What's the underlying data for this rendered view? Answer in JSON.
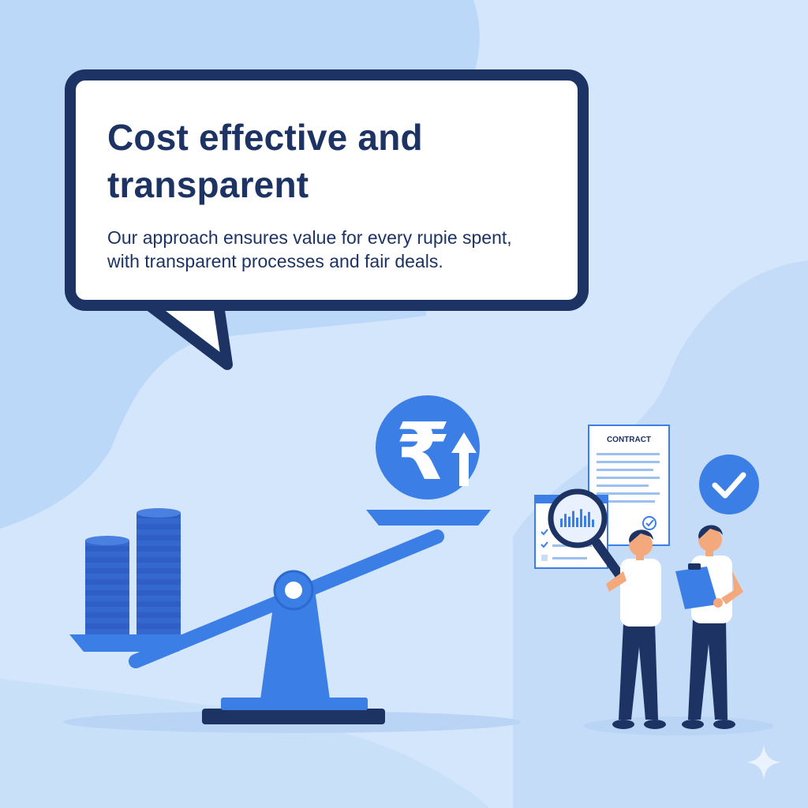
{
  "bubble": {
    "headline": "Cost effective and transparent",
    "body": "Our approach ensures value for every rupie spent, with transparent processes and fair deals."
  },
  "illustration": {
    "coin_symbol": "₹",
    "contract_label": "CONTRACT",
    "chart_bar_levels": [
      0.45,
      0.7,
      0.55,
      0.85,
      0.5,
      0.95,
      0.6,
      0.8,
      0.4
    ]
  },
  "colors": {
    "background": "#d4e6fb",
    "navy": "#1c3363",
    "accent_blue": "#3b7ee6",
    "coin_blue": "#2f5fc4",
    "white": "#ffffff"
  },
  "icons": [
    "rupee-coin-icon",
    "arrow-up-icon",
    "check-badge-icon",
    "magnifier-icon",
    "clipboard-icon",
    "sparkle-icon"
  ]
}
